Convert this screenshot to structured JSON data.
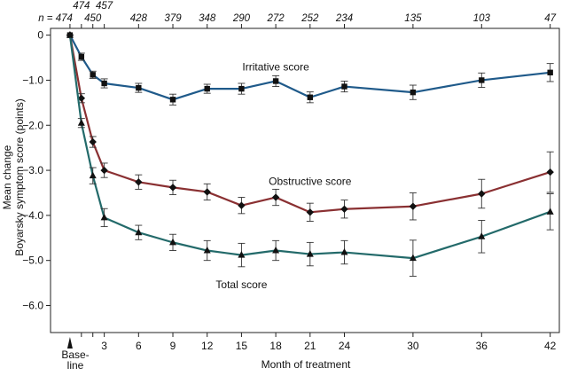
{
  "chart_data": {
    "type": "line",
    "xlabel": "Month of treatment",
    "ylabel_line1": "Mean change",
    "ylabel_line2": "Boyarsky symptom score (points)",
    "baseline_label_line1": "Base-",
    "baseline_label_line2": "line",
    "n_prefix": "n = ",
    "x_ticks": [
      3,
      6,
      9,
      12,
      15,
      18,
      21,
      24,
      30,
      36,
      42
    ],
    "y_ticks": [
      0,
      -1.0,
      -2.0,
      -3.0,
      -4.0,
      -5.0,
      -6.0
    ],
    "y_tick_labels": [
      "0",
      "−1.0",
      "−2.0",
      "−3.0",
      "−4.0",
      "−5.0",
      "−6.0"
    ],
    "ylim": [
      -6.6,
      0.15
    ],
    "xlim": [
      -1.7,
      42.8
    ],
    "sample_sizes": [
      {
        "x": 0,
        "n": "474",
        "row": "bottom",
        "prefix": true
      },
      {
        "x": 1,
        "n": "474",
        "row": "top"
      },
      {
        "x": 2,
        "n": "450",
        "row": "bottom"
      },
      {
        "x": 3,
        "n": "457",
        "row": "top"
      },
      {
        "x": 6,
        "n": "428",
        "row": "bottom"
      },
      {
        "x": 9,
        "n": "379",
        "row": "bottom"
      },
      {
        "x": 12,
        "n": "348",
        "row": "bottom"
      },
      {
        "x": 15,
        "n": "290",
        "row": "bottom"
      },
      {
        "x": 18,
        "n": "272",
        "row": "bottom"
      },
      {
        "x": 21,
        "n": "252",
        "row": "bottom"
      },
      {
        "x": 24,
        "n": "234",
        "row": "bottom"
      },
      {
        "x": 30,
        "n": "135",
        "row": "bottom"
      },
      {
        "x": 36,
        "n": "103",
        "row": "bottom"
      },
      {
        "x": 42,
        "n": "47",
        "row": "bottom"
      }
    ],
    "series": [
      {
        "name": "Irritative score",
        "color": "#1f5a8a",
        "marker": "square",
        "label_x": 18,
        "label_y": -0.78,
        "x": [
          0,
          1,
          2,
          3,
          6,
          9,
          12,
          15,
          18,
          21,
          24,
          30,
          36,
          42
        ],
        "y": [
          0,
          -0.48,
          -0.88,
          -1.07,
          -1.17,
          -1.43,
          -1.19,
          -1.19,
          -1.02,
          -1.38,
          -1.14,
          -1.27,
          -1.0,
          -0.83
        ],
        "err": [
          0,
          0.08,
          0.08,
          0.1,
          0.1,
          0.12,
          0.1,
          0.12,
          0.12,
          0.12,
          0.12,
          0.16,
          0.16,
          0.2
        ]
      },
      {
        "name": "Obstructive score",
        "color": "#8a3032",
        "marker": "diamond",
        "label_x": 21,
        "label_y": -3.32,
        "x": [
          0,
          1,
          2,
          3,
          6,
          9,
          12,
          15,
          18,
          21,
          24,
          30,
          36,
          42
        ],
        "y": [
          0,
          -1.4,
          -2.37,
          -3.0,
          -3.26,
          -3.38,
          -3.48,
          -3.78,
          -3.6,
          -3.93,
          -3.86,
          -3.8,
          -3.52,
          -3.04
        ],
        "err": [
          0,
          0.1,
          0.12,
          0.16,
          0.16,
          0.16,
          0.18,
          0.18,
          0.18,
          0.2,
          0.2,
          0.3,
          0.32,
          0.45
        ]
      },
      {
        "name": "Total score",
        "color": "#236a6a",
        "marker": "triangle",
        "label_x": 15,
        "label_y": -5.62,
        "x": [
          0,
          1,
          2,
          3,
          6,
          9,
          12,
          15,
          18,
          21,
          24,
          30,
          36,
          42
        ],
        "y": [
          0,
          -1.95,
          -3.12,
          -4.05,
          -4.38,
          -4.6,
          -4.78,
          -4.88,
          -4.78,
          -4.86,
          -4.82,
          -4.95,
          -4.47,
          -3.92
        ],
        "err": [
          0,
          0.1,
          0.18,
          0.2,
          0.16,
          0.18,
          0.22,
          0.26,
          0.22,
          0.26,
          0.26,
          0.4,
          0.36,
          0.4
        ]
      }
    ]
  }
}
